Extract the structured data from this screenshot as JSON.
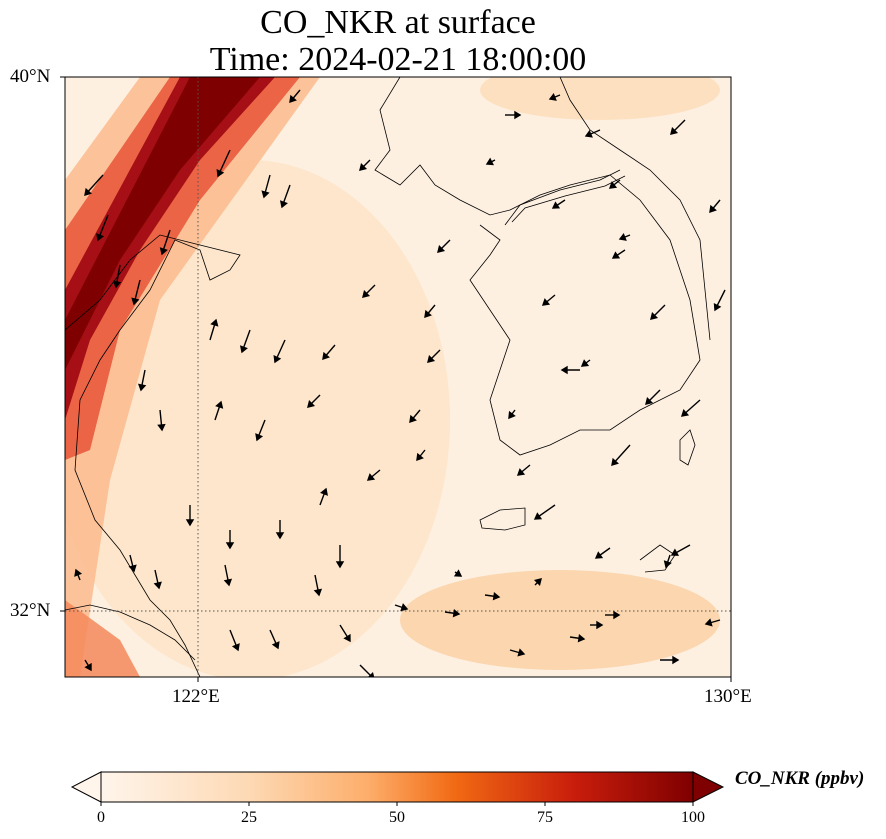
{
  "title": {
    "line1": "CO_NKR at surface",
    "line2": "Time: 2024-02-21 18:00:00"
  },
  "axes": {
    "y_ticks": [
      "40°N",
      "32°N"
    ],
    "x_ticks": [
      "122°E",
      "130°E"
    ]
  },
  "colorbar": {
    "label": "CO_NKR (ppbv)",
    "ticks": [
      "0",
      "25",
      "50",
      "75",
      "100"
    ],
    "range": [
      0,
      100
    ],
    "extend": "max",
    "colors": [
      "#fff5eb",
      "#fdd9b4",
      "#fdae6b",
      "#f16913",
      "#d94801",
      "#a50f15",
      "#7f0000"
    ]
  },
  "chart_data": {
    "type": "map",
    "title": "CO_NKR at surface\nTime: 2024-02-21 18:00:00",
    "lon_range": [
      120,
      130
    ],
    "lat_range": [
      31,
      40
    ],
    "gridlines": {
      "lon": [
        122
      ],
      "lat": [
        32
      ]
    },
    "field": "CO_NKR",
    "units": "ppbv",
    "description_values": {
      "plume_max": 100,
      "background": 10
    }
  }
}
